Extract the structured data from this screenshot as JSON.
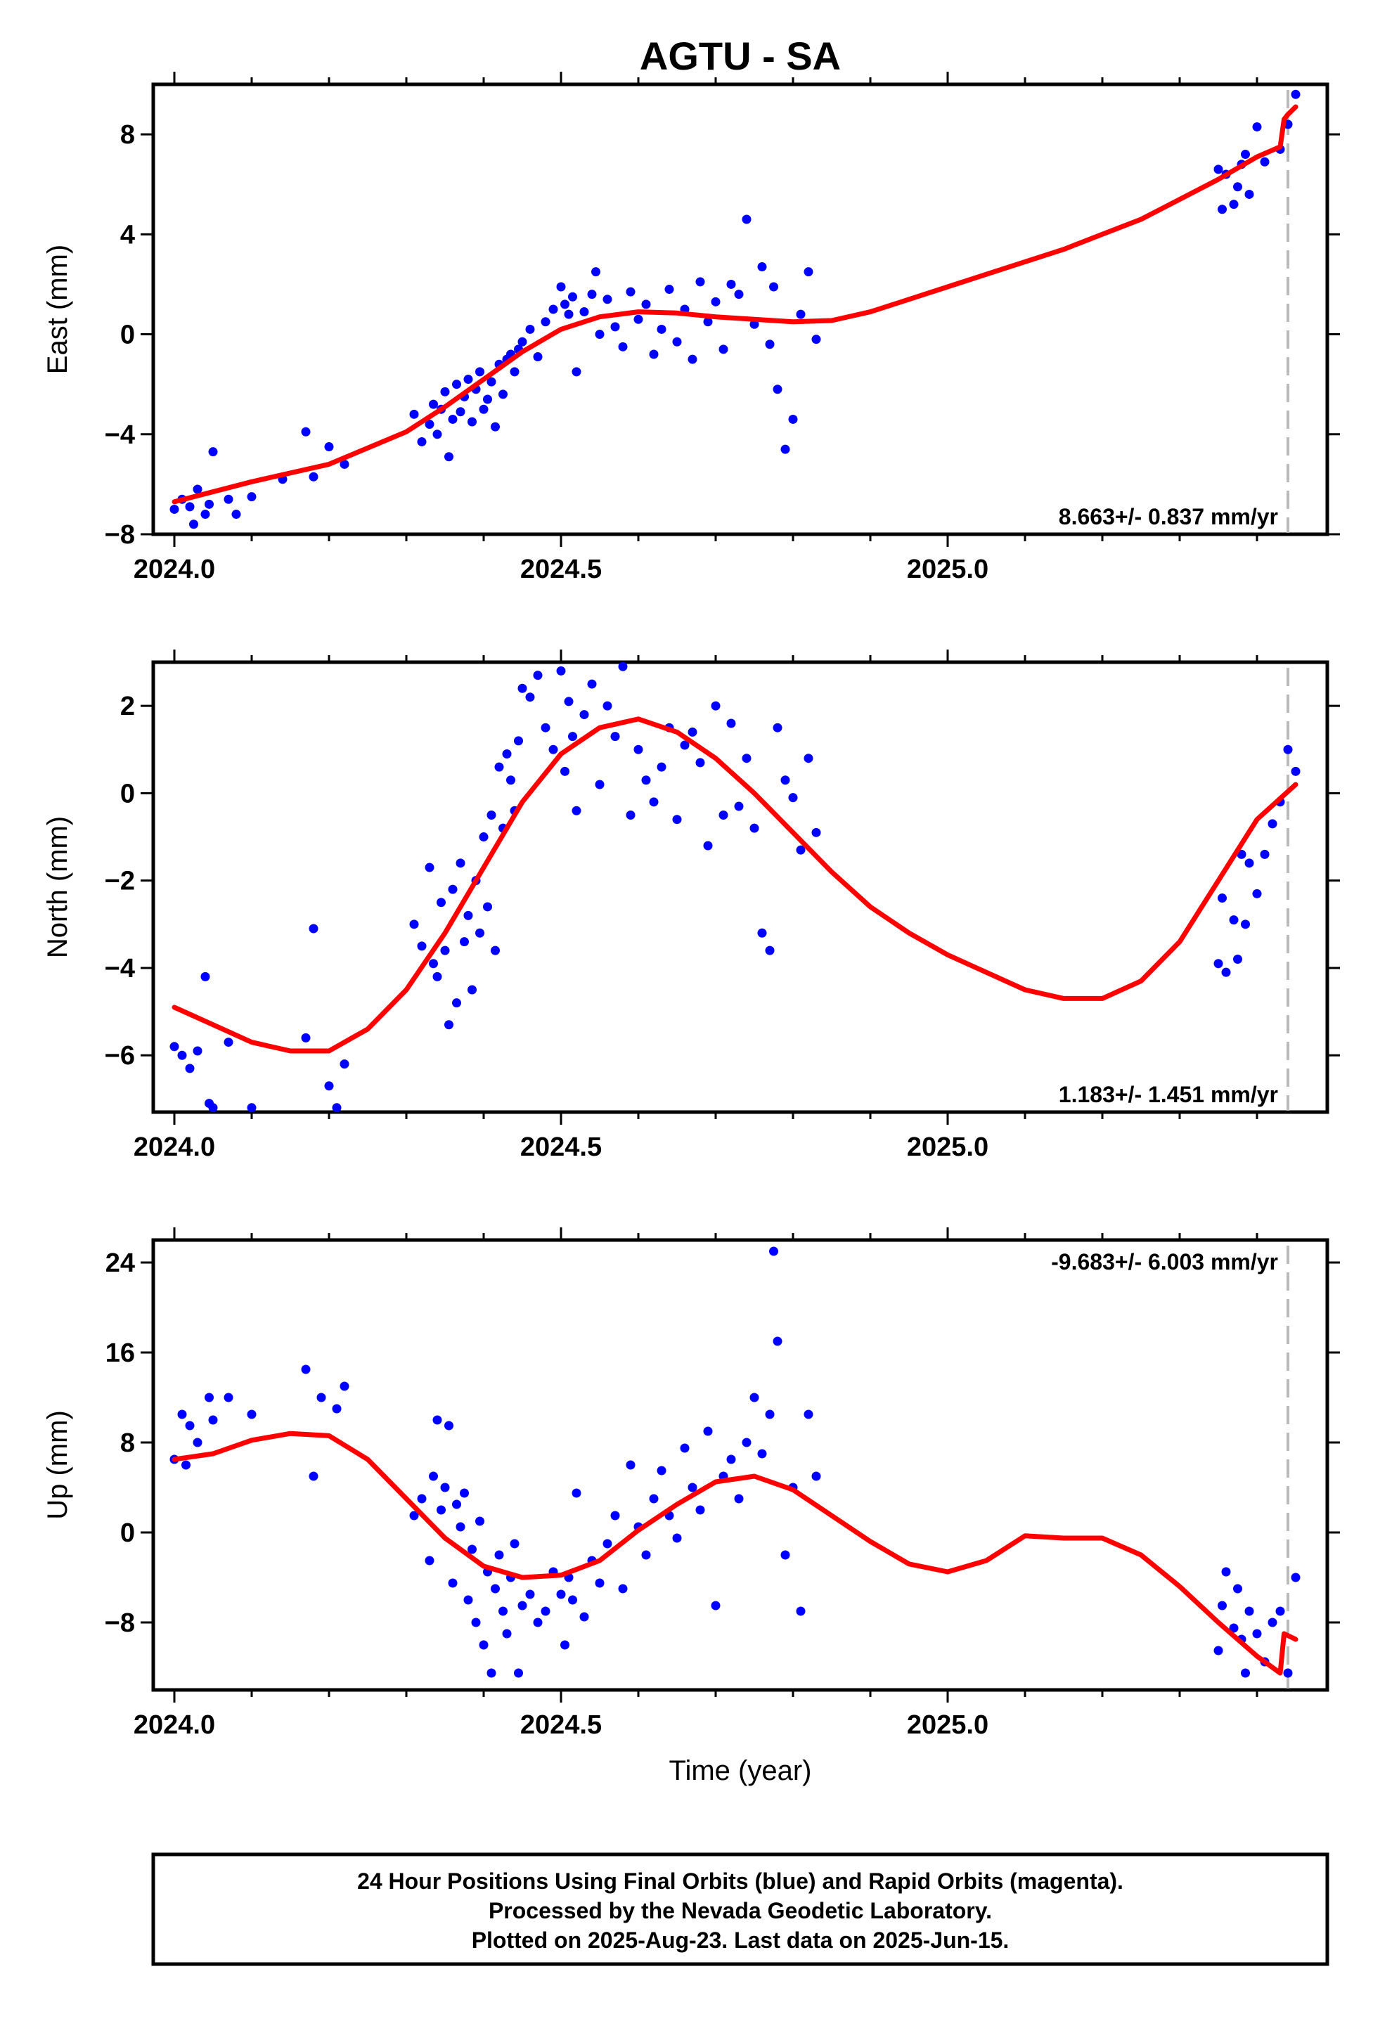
{
  "title": "AGTU - SA",
  "colors": {
    "points": "#0000ff",
    "fit": "#ff0000",
    "last_data_line": "#bbbbbb",
    "frame": "#000000"
  },
  "chart_data": [
    {
      "type": "scatter",
      "ylabel": "East (mm)",
      "xlabel": "",
      "xlim": [
        2024.0,
        2025.45
      ],
      "ylim": [
        -8,
        10
      ],
      "xticks": [
        2024.0,
        2024.5,
        2025.0
      ],
      "xtick_labels": [
        "2024.0",
        "2024.5",
        "2025.0"
      ],
      "yticks": [
        -8,
        -4,
        0,
        4,
        8
      ],
      "ytick_labels": [
        "−8",
        "−4",
        "0",
        "4",
        "8"
      ],
      "rate": "8.663+/- 0.837 mm/yr",
      "rate_position": "bottom-right",
      "last_data_x": 2025.44,
      "series": [
        {
          "label": "points",
          "style": "points",
          "x": [
            2024.0,
            2024.01,
            2024.02,
            2024.025,
            2024.03,
            2024.04,
            2024.045,
            2024.05,
            2024.07,
            2024.08,
            2024.1,
            2024.14,
            2024.17,
            2024.18,
            2024.2,
            2024.22,
            2024.31,
            2024.32,
            2024.33,
            2024.335,
            2024.34,
            2024.345,
            2024.35,
            2024.355,
            2024.36,
            2024.365,
            2024.37,
            2024.375,
            2024.38,
            2024.385,
            2024.39,
            2024.395,
            2024.4,
            2024.405,
            2024.41,
            2024.415,
            2024.42,
            2024.425,
            2024.43,
            2024.435,
            2024.44,
            2024.445,
            2024.45,
            2024.46,
            2024.47,
            2024.48,
            2024.49,
            2024.5,
            2024.505,
            2024.51,
            2024.515,
            2024.52,
            2024.53,
            2024.54,
            2024.545,
            2024.55,
            2024.56,
            2024.57,
            2024.58,
            2024.59,
            2024.6,
            2024.61,
            2024.62,
            2024.63,
            2024.64,
            2024.65,
            2024.66,
            2024.67,
            2024.68,
            2024.69,
            2024.7,
            2024.71,
            2024.72,
            2024.73,
            2024.74,
            2024.75,
            2024.76,
            2024.77,
            2024.775,
            2024.78,
            2024.79,
            2024.8,
            2024.81,
            2024.82,
            2024.83,
            2025.35,
            2025.355,
            2025.36,
            2025.37,
            2025.375,
            2025.38,
            2025.385,
            2025.39,
            2025.4,
            2025.41,
            2025.43,
            2025.44,
            2025.45
          ],
          "y": [
            -7.0,
            -6.6,
            -6.9,
            -7.6,
            -6.2,
            -7.2,
            -6.8,
            -4.7,
            -6.6,
            -7.2,
            -6.5,
            -5.8,
            -3.9,
            -5.7,
            -4.5,
            -5.2,
            -3.2,
            -4.3,
            -3.6,
            -2.8,
            -4.0,
            -3.0,
            -2.3,
            -4.9,
            -3.4,
            -2.0,
            -3.1,
            -2.5,
            -1.8,
            -3.5,
            -2.2,
            -1.5,
            -3.0,
            -2.6,
            -1.9,
            -3.7,
            -1.2,
            -2.4,
            -1.0,
            -0.8,
            -1.5,
            -0.6,
            -0.3,
            0.2,
            -0.9,
            0.5,
            1.0,
            1.9,
            1.2,
            0.8,
            1.5,
            -1.5,
            0.9,
            1.6,
            2.5,
            0.0,
            1.4,
            0.3,
            -0.5,
            1.7,
            0.6,
            1.2,
            -0.8,
            0.2,
            1.8,
            -0.3,
            1.0,
            -1.0,
            2.1,
            0.5,
            1.3,
            -0.6,
            2.0,
            1.6,
            4.6,
            0.4,
            2.7,
            -0.4,
            1.9,
            -2.2,
            -4.6,
            -3.4,
            0.8,
            2.5,
            -0.2,
            6.6,
            5.0,
            6.4,
            5.2,
            5.9,
            6.8,
            7.2,
            5.6,
            8.3,
            6.9,
            7.4,
            8.4,
            9.6
          ]
        },
        {
          "label": "fit",
          "style": "line",
          "x": [
            2024.0,
            2024.1,
            2024.2,
            2024.3,
            2024.35,
            2024.4,
            2024.45,
            2024.5,
            2024.55,
            2024.6,
            2024.65,
            2024.7,
            2024.75,
            2024.8,
            2024.85,
            2024.9,
            2024.95,
            2025.0,
            2025.05,
            2025.1,
            2025.15,
            2025.2,
            2025.25,
            2025.3,
            2025.35,
            2025.4,
            2025.43,
            2025.435,
            2025.44,
            2025.45
          ],
          "y": [
            -6.7,
            -5.9,
            -5.2,
            -3.9,
            -2.9,
            -1.8,
            -0.7,
            0.2,
            0.7,
            0.9,
            0.85,
            0.7,
            0.6,
            0.5,
            0.55,
            0.9,
            1.4,
            1.9,
            2.4,
            2.9,
            3.4,
            4.0,
            4.6,
            5.4,
            6.2,
            7.1,
            7.5,
            8.6,
            8.8,
            9.1
          ]
        }
      ]
    },
    {
      "type": "scatter",
      "ylabel": "North (mm)",
      "xlabel": "",
      "xlim": [
        2024.0,
        2025.45
      ],
      "ylim": [
        -7.3,
        3.0
      ],
      "xticks": [
        2024.0,
        2024.5,
        2025.0
      ],
      "xtick_labels": [
        "2024.0",
        "2024.5",
        "2025.0"
      ],
      "yticks": [
        -6,
        -4,
        -2,
        0,
        2
      ],
      "ytick_labels": [
        "−6",
        "−4",
        "−2",
        "0",
        "2"
      ],
      "rate": "1.183+/- 1.451 mm/yr",
      "rate_position": "bottom-right",
      "last_data_x": 2025.44,
      "series": [
        {
          "label": "points",
          "style": "points",
          "x": [
            2024.0,
            2024.01,
            2024.02,
            2024.03,
            2024.04,
            2024.045,
            2024.05,
            2024.07,
            2024.1,
            2024.17,
            2024.18,
            2024.2,
            2024.21,
            2024.22,
            2024.31,
            2024.32,
            2024.33,
            2024.335,
            2024.34,
            2024.345,
            2024.35,
            2024.355,
            2024.36,
            2024.365,
            2024.37,
            2024.375,
            2024.38,
            2024.385,
            2024.39,
            2024.395,
            2024.4,
            2024.405,
            2024.41,
            2024.415,
            2024.42,
            2024.425,
            2024.43,
            2024.435,
            2024.44,
            2024.445,
            2024.45,
            2024.46,
            2024.47,
            2024.48,
            2024.49,
            2024.5,
            2024.505,
            2024.51,
            2024.515,
            2024.52,
            2024.53,
            2024.54,
            2024.55,
            2024.56,
            2024.57,
            2024.58,
            2024.59,
            2024.6,
            2024.61,
            2024.62,
            2024.63,
            2024.64,
            2024.65,
            2024.66,
            2024.67,
            2024.68,
            2024.69,
            2024.7,
            2024.71,
            2024.72,
            2024.73,
            2024.74,
            2024.75,
            2024.76,
            2024.77,
            2024.78,
            2024.79,
            2024.8,
            2024.81,
            2024.82,
            2024.83,
            2025.35,
            2025.355,
            2025.36,
            2025.37,
            2025.375,
            2025.38,
            2025.385,
            2025.39,
            2025.4,
            2025.41,
            2025.42,
            2025.43,
            2025.44,
            2025.45
          ],
          "y": [
            -5.8,
            -6.0,
            -6.3,
            -5.9,
            -4.2,
            -7.1,
            -7.2,
            -5.7,
            -7.2,
            -5.6,
            -3.1,
            -6.7,
            -7.2,
            -6.2,
            -3.0,
            -3.5,
            -1.7,
            -3.9,
            -4.2,
            -2.5,
            -3.6,
            -5.3,
            -2.2,
            -4.8,
            -1.6,
            -3.4,
            -2.8,
            -4.5,
            -2.0,
            -3.2,
            -1.0,
            -2.6,
            -0.5,
            -3.6,
            0.6,
            -0.8,
            0.9,
            0.3,
            -0.4,
            1.2,
            2.4,
            2.2,
            2.7,
            1.5,
            1.0,
            2.8,
            0.5,
            2.1,
            1.3,
            -0.4,
            1.8,
            2.5,
            0.2,
            2.0,
            1.3,
            2.9,
            -0.5,
            1.0,
            0.3,
            -0.2,
            0.6,
            1.5,
            -0.6,
            1.1,
            1.4,
            0.7,
            -1.2,
            2.0,
            -0.5,
            1.6,
            -0.3,
            0.8,
            -0.8,
            -3.2,
            -3.6,
            1.5,
            0.3,
            -0.1,
            -1.3,
            0.8,
            -0.9,
            -3.9,
            -2.4,
            -4.1,
            -2.9,
            -3.8,
            -1.4,
            -3.0,
            -1.6,
            -2.3,
            -1.4,
            -0.7,
            -0.2,
            1.0,
            0.5
          ],
          "display_x_for_missing": null
        },
        {
          "label": "fit",
          "style": "line",
          "x": [
            2024.0,
            2024.05,
            2024.1,
            2024.15,
            2024.2,
            2024.25,
            2024.3,
            2024.35,
            2024.4,
            2024.45,
            2024.5,
            2024.55,
            2024.6,
            2024.65,
            2024.7,
            2024.75,
            2024.8,
            2024.85,
            2024.9,
            2024.95,
            2025.0,
            2025.05,
            2025.1,
            2025.15,
            2025.2,
            2025.25,
            2025.3,
            2025.35,
            2025.4,
            2025.45
          ],
          "y": [
            -4.9,
            -5.3,
            -5.7,
            -5.9,
            -5.9,
            -5.4,
            -4.5,
            -3.2,
            -1.7,
            -0.2,
            0.9,
            1.5,
            1.7,
            1.4,
            0.8,
            0.0,
            -0.9,
            -1.8,
            -2.6,
            -3.2,
            -3.7,
            -4.1,
            -4.5,
            -4.7,
            -4.7,
            -4.3,
            -3.4,
            -2.0,
            -0.6,
            0.2
          ]
        }
      ]
    },
    {
      "type": "scatter",
      "ylabel": "Up (mm)",
      "xlabel": "Time (year)",
      "xlim": [
        2024.0,
        2025.45
      ],
      "ylim": [
        -14,
        26
      ],
      "xticks": [
        2024.0,
        2024.5,
        2025.0
      ],
      "xtick_labels": [
        "2024.0",
        "2024.5",
        "2025.0"
      ],
      "yticks": [
        -8,
        0,
        8,
        16,
        24
      ],
      "ytick_labels": [
        "−8",
        "0",
        "8",
        "16",
        "24"
      ],
      "rate": "-9.683+/- 6.003 mm/yr",
      "rate_position": "top-right",
      "last_data_x": 2025.44,
      "series": [
        {
          "label": "points",
          "style": "points",
          "x": [
            2024.0,
            2024.01,
            2024.015,
            2024.02,
            2024.03,
            2024.045,
            2024.05,
            2024.07,
            2024.1,
            2024.17,
            2024.18,
            2024.19,
            2024.21,
            2024.22,
            2024.31,
            2024.32,
            2024.33,
            2024.335,
            2024.34,
            2024.345,
            2024.35,
            2024.355,
            2024.36,
            2024.365,
            2024.37,
            2024.375,
            2024.38,
            2024.385,
            2024.39,
            2024.395,
            2024.4,
            2024.405,
            2024.41,
            2024.415,
            2024.42,
            2024.425,
            2024.43,
            2024.435,
            2024.44,
            2024.445,
            2024.45,
            2024.46,
            2024.47,
            2024.48,
            2024.49,
            2024.5,
            2024.505,
            2024.51,
            2024.515,
            2024.52,
            2024.53,
            2024.54,
            2024.55,
            2024.56,
            2024.57,
            2024.58,
            2024.59,
            2024.6,
            2024.61,
            2024.62,
            2024.63,
            2024.64,
            2024.65,
            2024.66,
            2024.67,
            2024.68,
            2024.69,
            2024.7,
            2024.71,
            2024.72,
            2024.73,
            2024.74,
            2024.75,
            2024.76,
            2024.77,
            2024.775,
            2024.78,
            2024.79,
            2024.8,
            2024.81,
            2024.82,
            2024.83,
            2025.35,
            2025.355,
            2025.36,
            2025.37,
            2025.375,
            2025.38,
            2025.385,
            2025.39,
            2025.4,
            2025.41,
            2025.42,
            2025.43,
            2025.44,
            2025.45
          ],
          "y": [
            6.5,
            10.5,
            6.0,
            9.5,
            8.0,
            12.0,
            10.0,
            12.0,
            10.5,
            14.5,
            5.0,
            12.0,
            11.0,
            13.0,
            1.5,
            3.0,
            -2.5,
            5.0,
            10.0,
            2.0,
            4.0,
            9.5,
            -4.5,
            2.5,
            0.5,
            3.5,
            -6.0,
            -1.5,
            -8.0,
            1.0,
            -10.0,
            -3.5,
            -12.5,
            -5.0,
            -2.0,
            -7.0,
            -9.0,
            -4.0,
            -1.0,
            -12.5,
            -6.5,
            -5.5,
            -8.0,
            -7.0,
            -3.5,
            -5.5,
            -10.0,
            -4.0,
            -6.0,
            3.5,
            -7.5,
            -2.5,
            -4.5,
            -1.0,
            1.5,
            -5.0,
            6.0,
            0.5,
            -2.0,
            3.0,
            5.5,
            1.5,
            -0.5,
            7.5,
            4.0,
            2.0,
            9.0,
            -6.5,
            5.0,
            6.5,
            3.0,
            8.0,
            12.0,
            7.0,
            10.5,
            25.0,
            17.0,
            -2.0,
            4.0,
            -7.0,
            10.5,
            5.0,
            -10.5,
            -6.5,
            -3.5,
            -8.5,
            -5.0,
            -9.5,
            -12.5,
            -7.0,
            -9.0,
            -11.5,
            -8.0,
            -7.0,
            -12.5,
            -4.0
          ],
          "display_x_for_missing": null
        },
        {
          "label": "fit",
          "style": "line",
          "x": [
            2024.0,
            2024.05,
            2024.1,
            2024.15,
            2024.2,
            2024.25,
            2024.3,
            2024.35,
            2024.4,
            2024.45,
            2024.5,
            2024.55,
            2024.6,
            2024.65,
            2024.7,
            2024.75,
            2024.8,
            2024.85,
            2024.9,
            2024.95,
            2025.0,
            2025.05,
            2025.1,
            2025.15,
            2025.2,
            2025.25,
            2025.3,
            2025.35,
            2025.4,
            2025.43,
            2025.435,
            2025.45
          ],
          "y": [
            6.5,
            7.0,
            8.2,
            8.8,
            8.6,
            6.5,
            3.0,
            -0.5,
            -3.0,
            -4.0,
            -3.8,
            -2.5,
            0.2,
            2.5,
            4.5,
            5.0,
            3.8,
            1.5,
            -0.8,
            -2.8,
            -3.5,
            -2.5,
            -0.3,
            -0.5,
            -0.5,
            -2.0,
            -4.8,
            -8.0,
            -11.0,
            -12.5,
            -9.0,
            -9.5
          ]
        }
      ]
    }
  ],
  "footer": {
    "line1": "24 Hour Positions Using Final Orbits (blue) and Rapid Orbits (magenta).",
    "line2": "Processed by the Nevada Geodetic Laboratory.",
    "line3": "Plotted on 2025-Aug-23. Last data on 2025-Jun-15."
  }
}
